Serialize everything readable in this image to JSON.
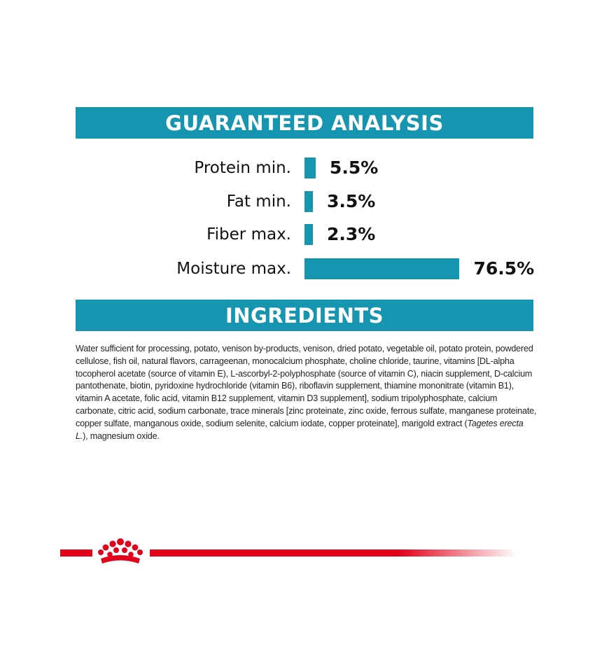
{
  "guaranteed_analysis": {
    "title": "GUARANTEED ANALYSIS",
    "rows": [
      {
        "label": "Protein min.",
        "value": "5.5%",
        "percent": 5.5
      },
      {
        "label": "Fat min.",
        "value": "3.5%",
        "percent": 3.5
      },
      {
        "label": "Fiber max.",
        "value": "2.3%",
        "percent": 2.3
      },
      {
        "label": "Moisture max.",
        "value": "76.5%",
        "percent": 76.5
      }
    ]
  },
  "ingredients": {
    "title": "INGREDIENTS",
    "text_before_italic": "Water sufficient for processing, potato, venison by-products, venison, dried potato, vegetable oil, potato protein, powdered cellulose, fish oil, natural flavors, carrageenan, monocalcium phosphate, choline chloride, taurine, vitamins [DL-alpha tocopherol acetate (source of vitamin E), L-ascorbyl-2-polyphosphate (source of vitamin C), niacin supplement, D-calcium pantothenate, biotin, pyridoxine hydrochloride (vitamin B6), riboflavin supplement, thiamine mononitrate (vitamin B1), vitamin A acetate, folic acid, vitamin B12 supplement, vitamin D3 supplement], sodium tripolyphosphate, calcium carbonate, citric acid, sodium carbonate, trace minerals [zinc proteinate, zinc oxide, ferrous sulfate, manganese proteinate, copper sulfate, manganous oxide, sodium selenite, calcium iodate, copper proteinate], marigold extract (",
    "italic": "Tagetes erecta L.",
    "text_after_italic": "), magnesium oxide."
  },
  "brand": {
    "logo_icon": "crown-icon",
    "accent_color": "#1595b0",
    "brand_color": "#e2001a"
  }
}
